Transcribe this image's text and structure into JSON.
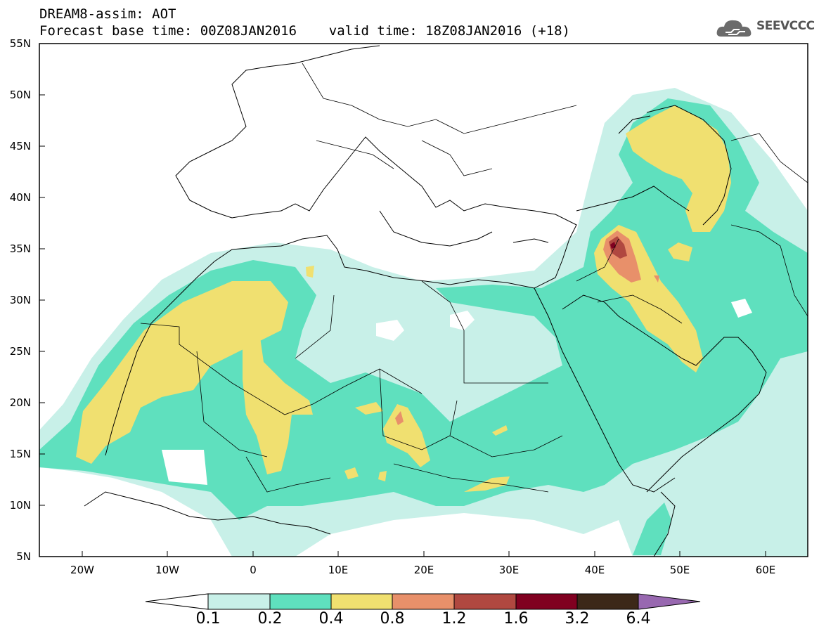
{
  "header": {
    "title_line1": "DREAM8-assim: AOT",
    "title_line2": "Forecast base time: 00Z08JAN2016    valid time: 18Z08JAN2016 (+18)"
  },
  "logo": {
    "text": "SEEVCCC",
    "icon": "cloud-logo-icon"
  },
  "map": {
    "projection": "lat-lon",
    "lon_range": [
      -25,
      65
    ],
    "lat_range": [
      5,
      55
    ],
    "lat_labels": [
      "55N",
      "50N",
      "45N",
      "40N",
      "35N",
      "30N",
      "25N",
      "20N",
      "15N",
      "10N",
      "5N"
    ],
    "lon_labels": [
      "20W",
      "10W",
      "0",
      "10E",
      "20E",
      "30E",
      "40E",
      "50E",
      "60E"
    ]
  },
  "colorbar": {
    "labels": [
      "0.1",
      "0.2",
      "0.4",
      "0.8",
      "1.2",
      "1.6",
      "3.2",
      "6.4"
    ],
    "colors": [
      "#ffffff",
      "#c8f0e8",
      "#5fe0be",
      "#f0e070",
      "#e8906a",
      "#b04840",
      "#800020",
      "#3c2818",
      "#9868b0"
    ]
  }
}
